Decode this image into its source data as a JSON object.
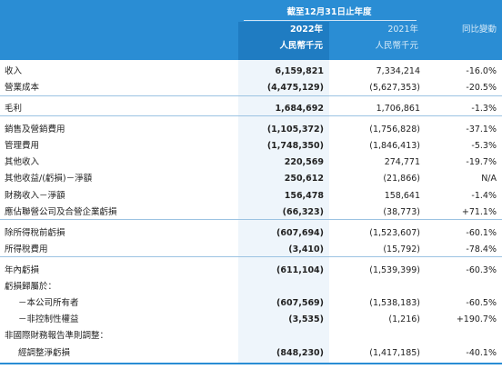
{
  "header": {
    "period": "截至12月31日止年度",
    "columns": [
      {
        "year": "2022年",
        "unit": "人民幣千元"
      },
      {
        "year": "2021年",
        "unit": "人民幣千元"
      }
    ],
    "change": "同比變動"
  },
  "table": {
    "sections": [
      [
        [
          "收入",
          "6,159,821",
          "7,334,214",
          "-16.0%"
        ],
        [
          "營業成本",
          "(4,475,129)",
          "(5,627,353)",
          "-20.5%"
        ]
      ],
      [
        [
          "毛利",
          "1,684,692",
          "1,706,861",
          "-1.3%"
        ]
      ],
      [
        [
          "銷售及營銷費用",
          "(1,105,372)",
          "(1,756,828)",
          "-37.1%"
        ],
        [
          "管理費用",
          "(1,748,350)",
          "(1,846,413)",
          "-5.3%"
        ],
        [
          "其他收入",
          "220,569",
          "274,771",
          "-19.7%"
        ],
        [
          "其他收益/(虧損)－淨額",
          "250,612",
          "(21,866)",
          "N/A"
        ],
        [
          "財務收入－淨額",
          "156,478",
          "158,641",
          "-1.4%"
        ],
        [
          "應佔聯營公司及合營企業虧損",
          "(66,323)",
          "(38,773)",
          "+71.1%"
        ]
      ],
      [
        [
          "除所得稅前虧損",
          "(607,694)",
          "(1,523,607)",
          "-60.1%"
        ],
        [
          "所得稅費用",
          "(3,410)",
          "(15,792)",
          "-78.4%"
        ]
      ],
      [
        [
          "年內虧損",
          "(611,104)",
          "(1,539,399)",
          "-60.3%"
        ],
        [
          "虧損歸屬於："
        ],
        [
          "－本公司所有者",
          "(607,569)",
          "(1,538,183)",
          "-60.5%"
        ],
        [
          "－非控制性權益",
          "(3,535)",
          "(1,216)",
          "+190.7%"
        ],
        [
          "非國際財務報告準則調整："
        ],
        [
          "經調整淨虧損",
          "(848,230)",
          "(1,417,185)",
          "-40.1%"
        ]
      ]
    ]
  }
}
